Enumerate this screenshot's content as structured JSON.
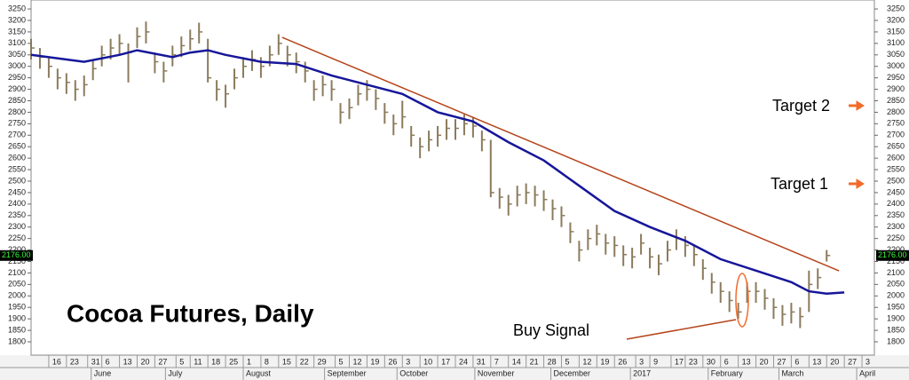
{
  "chart_data": {
    "type": "ohlc",
    "title": "Cocoa Futures, Daily",
    "annotations": {
      "target_2": "Target 2",
      "target_1": "Target 1",
      "buy_signal": "Buy Signal"
    },
    "color": "#8b7b5c",
    "x": [
      -1,
      -0.5,
      0,
      0.5,
      1,
      1.5,
      2,
      2.5,
      3,
      3.5,
      4,
      4.5,
      5,
      5.5,
      6,
      6.5,
      7,
      7.5,
      8,
      8.5,
      9,
      9.5,
      10,
      10.5,
      11,
      11.5,
      12,
      12.5,
      13,
      13.5,
      14,
      14.5,
      15,
      15.5,
      16,
      16.5,
      17,
      17.5,
      18,
      18.5,
      19,
      19.5,
      20,
      20.5,
      21,
      21.5,
      22,
      22.5,
      23,
      23.5,
      24,
      24.5,
      25,
      25.5,
      26,
      26.5,
      27,
      27.5,
      28,
      28.5,
      29,
      29.5,
      30,
      30.5,
      31,
      31.5,
      32,
      32.5,
      33,
      33.5,
      34,
      34.5,
      35,
      35.5,
      36,
      36.5,
      37,
      37.5,
      38,
      38.5,
      39,
      39.5,
      40,
      40.5,
      41,
      41.5,
      42,
      42.5,
      43,
      43.5,
      44
    ],
    "high": [
      3120,
      3080,
      3040,
      2990,
      2970,
      2940,
      2960,
      3030,
      3090,
      3120,
      3140,
      3100,
      3170,
      3195,
      3060,
      3020,
      3090,
      3130,
      3160,
      3190,
      3120,
      2940,
      2920,
      2990,
      3040,
      3070,
      3040,
      3090,
      3140,
      3090,
      3060,
      3020,
      2940,
      2960,
      2940,
      2840,
      2860,
      2920,
      2940,
      2900,
      2840,
      2790,
      2850,
      2740,
      2690,
      2720,
      2740,
      2770,
      2770,
      2790,
      2780,
      2720,
      2680,
      2470,
      2440,
      2480,
      2490,
      2480,
      2460,
      2420,
      2390,
      2320,
      2240,
      2290,
      2310,
      2270,
      2260,
      2220,
      2210,
      2270,
      2210,
      2180,
      2240,
      2290,
      2260,
      2220,
      2160,
      2100,
      2060,
      2020,
      1970,
      2060,
      2060,
      2030,
      1990,
      1960,
      1970,
      1950,
      2110,
      2120,
      2200
    ],
    "low": [
      3030,
      2990,
      2950,
      2900,
      2880,
      2850,
      2870,
      2940,
      3000,
      3030,
      3050,
      2930,
      3080,
      3100,
      2970,
      2930,
      3000,
      3040,
      3070,
      3100,
      2930,
      2850,
      2820,
      2900,
      2950,
      2980,
      2950,
      3000,
      3050,
      3000,
      2970,
      2930,
      2850,
      2870,
      2850,
      2750,
      2770,
      2830,
      2850,
      2810,
      2750,
      2700,
      2730,
      2650,
      2600,
      2630,
      2650,
      2680,
      2680,
      2700,
      2690,
      2630,
      2430,
      2380,
      2350,
      2390,
      2400,
      2390,
      2370,
      2330,
      2300,
      2230,
      2150,
      2200,
      2220,
      2180,
      2170,
      2130,
      2120,
      2180,
      2120,
      2090,
      2150,
      2200,
      2170,
      2130,
      2070,
      2010,
      1970,
      1930,
      1900,
      1970,
      1970,
      1940,
      1900,
      1870,
      1880,
      1860,
      1930,
      2030,
      2150
    ],
    "close": [
      3080,
      3040,
      3000,
      2950,
      2930,
      2900,
      2920,
      2990,
      3050,
      3080,
      3100,
      3060,
      3130,
      3150,
      3020,
      2980,
      3050,
      3090,
      3120,
      3150,
      2950,
      2900,
      2880,
      2950,
      3000,
      3030,
      3000,
      3050,
      3100,
      3050,
      3020,
      2980,
      2900,
      2920,
      2900,
      2800,
      2820,
      2880,
      2900,
      2860,
      2800,
      2750,
      2780,
      2700,
      2650,
      2680,
      2700,
      2730,
      2730,
      2750,
      2740,
      2680,
      2450,
      2430,
      2400,
      2440,
      2450,
      2440,
      2420,
      2380,
      2350,
      2280,
      2200,
      2250,
      2270,
      2230,
      2220,
      2180,
      2170,
      2230,
      2170,
      2140,
      2200,
      2250,
      2220,
      2180,
      2120,
      2060,
      2020,
      1980,
      1930,
      2020,
      2020,
      1990,
      1950,
      1920,
      1930,
      1910,
      2050,
      2080,
      2176
    ],
    "moving_average": {
      "color": "#16169a",
      "x": [
        -1,
        2,
        4,
        5,
        7,
        8,
        9,
        10,
        12,
        14,
        16,
        18,
        20,
        22,
        24,
        26,
        28,
        30,
        32,
        34,
        36,
        38,
        40,
        42,
        43,
        44,
        45
      ],
      "values": [
        3050,
        3020,
        3050,
        3070,
        3040,
        3060,
        3070,
        3050,
        3020,
        3010,
        2960,
        2920,
        2880,
        2800,
        2760,
        2670,
        2590,
        2480,
        2370,
        2300,
        2240,
        2160,
        2110,
        2060,
        2020,
        2010,
        2015
      ]
    },
    "trendline": {
      "color": "#b5441a",
      "x": [
        13.2,
        44.7
      ],
      "values": [
        3126,
        2109
      ]
    },
    "last_price": {
      "value": 2176,
      "label": "2176.00"
    },
    "xlim": [
      -1,
      46.7
    ],
    "ylim": [
      1742,
      3289
    ],
    "yticks": [
      1800,
      1850,
      1900,
      1950,
      2000,
      2050,
      2100,
      2150,
      2200,
      2250,
      2300,
      2350,
      2400,
      2450,
      2500,
      2550,
      2600,
      2650,
      2700,
      2750,
      2800,
      2850,
      2900,
      2950,
      3000,
      3050,
      3100,
      3150,
      3200,
      3250
    ],
    "xticks": [
      {
        "value": 0,
        "label": "16"
      },
      {
        "value": 1,
        "label": "23"
      },
      {
        "value": 2.2,
        "label": "31"
      },
      {
        "value": 3,
        "label": "6"
      },
      {
        "value": 4,
        "label": "13"
      },
      {
        "value": 5,
        "label": "20"
      },
      {
        "value": 6,
        "label": "27"
      },
      {
        "value": 7.2,
        "label": "5"
      },
      {
        "value": 8,
        "label": "11"
      },
      {
        "value": 9,
        "label": "18"
      },
      {
        "value": 10,
        "label": "25"
      },
      {
        "value": 11,
        "label": "1"
      },
      {
        "value": 12,
        "label": "8"
      },
      {
        "value": 13,
        "label": "15"
      },
      {
        "value": 14,
        "label": "22"
      },
      {
        "value": 15,
        "label": "29"
      },
      {
        "value": 16.2,
        "label": "5"
      },
      {
        "value": 17,
        "label": "12"
      },
      {
        "value": 18,
        "label": "19"
      },
      {
        "value": 19,
        "label": "26"
      },
      {
        "value": 20,
        "label": "3"
      },
      {
        "value": 21,
        "label": "10"
      },
      {
        "value": 22,
        "label": "17"
      },
      {
        "value": 23,
        "label": "24"
      },
      {
        "value": 24,
        "label": "31"
      },
      {
        "value": 25,
        "label": "7"
      },
      {
        "value": 26,
        "label": "14"
      },
      {
        "value": 27,
        "label": "21"
      },
      {
        "value": 28,
        "label": "28"
      },
      {
        "value": 29,
        "label": "5"
      },
      {
        "value": 30,
        "label": "12"
      },
      {
        "value": 31,
        "label": "19"
      },
      {
        "value": 32,
        "label": "26"
      },
      {
        "value": 33.2,
        "label": "3"
      },
      {
        "value": 34,
        "label": "9"
      },
      {
        "value": 35.2,
        "label": "17"
      },
      {
        "value": 36,
        "label": "23"
      },
      {
        "value": 37,
        "label": "30"
      },
      {
        "value": 38,
        "label": "6"
      },
      {
        "value": 39,
        "label": "13"
      },
      {
        "value": 40,
        "label": "20"
      },
      {
        "value": 41,
        "label": "27"
      },
      {
        "value": 42,
        "label": "6"
      },
      {
        "value": 43,
        "label": "13"
      },
      {
        "value": 44,
        "label": "20"
      },
      {
        "value": 45,
        "label": "27"
      },
      {
        "value": 46,
        "label": "3"
      }
    ],
    "month_ticks": [
      {
        "value": 2.4,
        "label": "June"
      },
      {
        "value": 6.6,
        "label": "July"
      },
      {
        "value": 11,
        "label": "August"
      },
      {
        "value": 15.6,
        "label": "September"
      },
      {
        "value": 19.7,
        "label": "October"
      },
      {
        "value": 24.1,
        "label": "November"
      },
      {
        "value": 28.4,
        "label": "December"
      },
      {
        "value": 32.9,
        "label": "2017"
      },
      {
        "value": 37.3,
        "label": "February"
      },
      {
        "value": 41.3,
        "label": "March"
      },
      {
        "value": 45.7,
        "label": "April"
      }
    ]
  }
}
